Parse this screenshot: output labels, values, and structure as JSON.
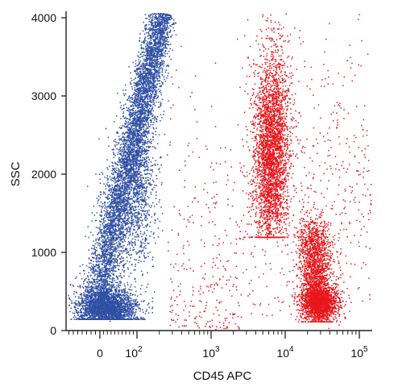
{
  "chart_data": {
    "type": "scatter",
    "xlabel": "CD45 APC",
    "ylabel": "SSC",
    "x_scale": "biexponential",
    "xlim": [
      -60,
      200000
    ],
    "ylim": [
      0,
      4096
    ],
    "grid": false,
    "x_ticks": [
      {
        "value": 0,
        "base": "0",
        "exp": ""
      },
      {
        "value": 100,
        "base": "10",
        "exp": "2"
      },
      {
        "value": 1000,
        "base": "10",
        "exp": "3"
      },
      {
        "value": 10000,
        "base": "10",
        "exp": "4"
      },
      {
        "value": 100000,
        "base": "10",
        "exp": "5"
      }
    ],
    "y_ticks": [
      "0",
      "1000",
      "2000",
      "3000",
      "4000"
    ],
    "series": [
      {
        "color": "#2f4fa3",
        "points": 9000
      },
      {
        "color": "#e8161b",
        "points": 7500
      }
    ]
  }
}
